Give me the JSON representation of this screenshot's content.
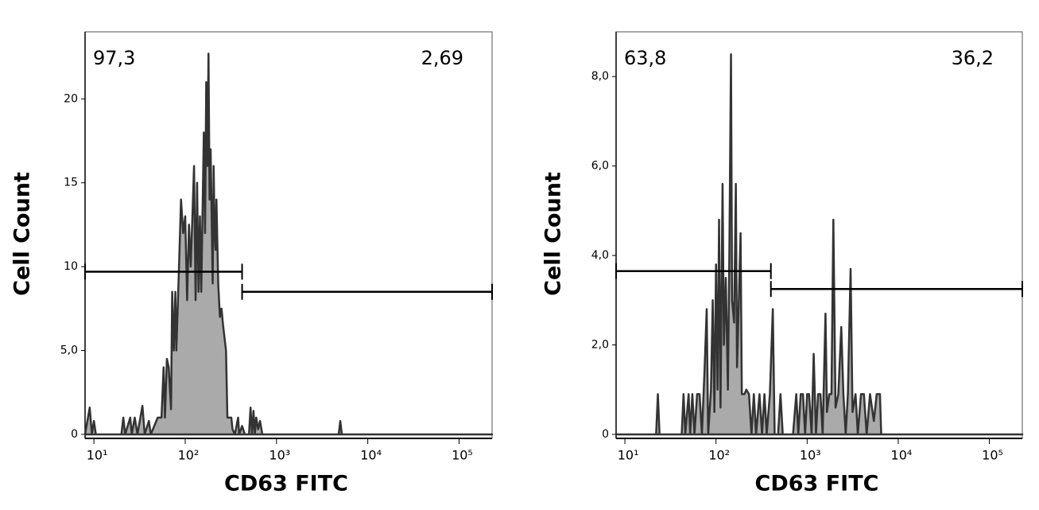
{
  "chart_data": [
    {
      "type": "area",
      "xlog": true,
      "x_label": "CD63 FITC",
      "y_label": "Cell Count",
      "fill": "#aaaaaa",
      "line_color": "#333333",
      "xlim": [
        8,
        230000
      ],
      "ylim": [
        -0.24,
        24
      ],
      "xticks": [
        {
          "value": 10,
          "label": "10¹"
        },
        {
          "value": 100,
          "label": "10²"
        },
        {
          "value": 1000,
          "label": "10³"
        },
        {
          "value": 10000,
          "label": "10⁴"
        },
        {
          "value": 100000,
          "label": "10⁵"
        }
      ],
      "yticks": [
        0,
        {
          "value": 5,
          "label": "5,0"
        },
        10,
        15,
        20
      ],
      "x": [
        8,
        9,
        9.5,
        10,
        10.5,
        20,
        21,
        22,
        25,
        26,
        28,
        30,
        34,
        36,
        40,
        42,
        50,
        55,
        58,
        60,
        63,
        66,
        70,
        72,
        75,
        78,
        80,
        85,
        90,
        95,
        100,
        105,
        110,
        115,
        120,
        125,
        130,
        135,
        140,
        145,
        150,
        160,
        165,
        170,
        175,
        180,
        185,
        190,
        200,
        205,
        210,
        215,
        220,
        230,
        240,
        250,
        260,
        280,
        290,
        300,
        320,
        330,
        350,
        380,
        390,
        420,
        450,
        500,
        520,
        540,
        560,
        580,
        600,
        630,
        660,
        700,
        4800,
        5000,
        5200,
        230000
      ],
      "values": [
        0,
        1.6,
        0,
        0.8,
        0,
        0,
        1,
        0,
        1,
        0,
        1,
        0,
        1.7,
        0,
        0.8,
        0,
        1,
        1,
        4,
        1,
        4.5,
        4,
        1.5,
        8.5,
        5,
        8.5,
        5,
        9.5,
        14,
        12,
        13,
        8,
        12.5,
        10,
        13,
        16,
        8,
        15,
        8.5,
        13,
        8.5,
        18,
        12,
        21,
        16,
        22.7,
        14,
        17,
        9,
        16,
        12,
        11,
        14,
        9,
        7,
        7.5,
        6.5,
        5,
        1,
        1,
        1,
        0.3,
        0,
        1,
        0,
        0.5,
        0,
        0,
        1.6,
        0,
        1.4,
        0,
        1,
        0.3,
        0.8,
        0,
        0,
        0.8,
        0,
        0
      ],
      "gates": [
        {
          "x": [
            8,
            420
          ],
          "y": 9.7,
          "label": "97,3"
        },
        {
          "x": [
            420,
            230000
          ],
          "y": 8.5,
          "label": "2,69"
        }
      ]
    },
    {
      "type": "area",
      "xlog": true,
      "x_label": "CD63 FITC",
      "y_label": "Cell Count",
      "fill": "#aaaaaa",
      "line_color": "#333333",
      "xlim": [
        8,
        230000
      ],
      "ylim": [
        -0.09,
        9.0
      ],
      "xticks": [
        {
          "value": 10,
          "label": "10¹"
        },
        {
          "value": 100,
          "label": "10²"
        },
        {
          "value": 1000,
          "label": "10³"
        },
        {
          "value": 10000,
          "label": "10⁴"
        },
        {
          "value": 100000,
          "label": "10⁵"
        }
      ],
      "yticks": [
        0,
        {
          "value": 2,
          "label": "2,0"
        },
        {
          "value": 4,
          "label": "4,0"
        },
        {
          "value": 6,
          "label": "6,0"
        },
        {
          "value": 8,
          "label": "8,0"
        }
      ],
      "x": [
        8,
        22,
        23,
        24,
        42,
        44,
        46,
        50,
        52,
        55,
        58,
        62,
        66,
        70,
        75,
        79,
        82,
        88,
        92,
        96,
        100,
        104,
        108,
        112,
        118,
        122,
        128,
        135,
        140,
        146,
        150,
        158,
        165,
        170,
        178,
        186,
        192,
        205,
        215,
        230,
        245,
        260,
        275,
        300,
        320,
        340,
        360,
        390,
        420,
        440,
        480,
        510,
        540,
        600,
        700,
        760,
        800,
        850,
        900,
        950,
        1000,
        1050,
        1120,
        1180,
        1250,
        1320,
        1400,
        1480,
        1590,
        1650,
        1750,
        1850,
        1940,
        2050,
        2200,
        2370,
        2500,
        2650,
        2800,
        3000,
        3150,
        3400,
        3600,
        3900,
        4200,
        4500,
        4900,
        5400,
        5800,
        6300,
        6500,
        230000
      ],
      "values": [
        0,
        0,
        0.9,
        0,
        0,
        0.9,
        0,
        0.9,
        0,
        0.9,
        0,
        0.9,
        0.9,
        0,
        1.5,
        2.8,
        0,
        1,
        3,
        0.5,
        3.8,
        1,
        4.8,
        0.6,
        5.6,
        2,
        3.5,
        1,
        4,
        8.5,
        3,
        2.5,
        5.6,
        1.5,
        3,
        4.5,
        0.9,
        0.9,
        1,
        0.9,
        0,
        0.9,
        0,
        0.9,
        0,
        0.9,
        0,
        0.9,
        2.8,
        0,
        0,
        0.9,
        0,
        0,
        0,
        0.9,
        0,
        0.9,
        0.9,
        0,
        0.9,
        0.9,
        0,
        1.8,
        0,
        0.9,
        0.9,
        0,
        2.7,
        0.5,
        0.9,
        0.9,
        4.8,
        0.6,
        0.9,
        2.4,
        0.9,
        0,
        0.9,
        3.7,
        0.5,
        0.9,
        0,
        0.9,
        0.9,
        0,
        0.9,
        0.3,
        0.9,
        0.9,
        0,
        0
      ],
      "gates": [
        {
          "x": [
            8,
            400
          ],
          "y": 3.65,
          "label": "63,8"
        },
        {
          "x": [
            400,
            230000
          ],
          "y": 3.25,
          "label": "36,2"
        }
      ]
    }
  ]
}
